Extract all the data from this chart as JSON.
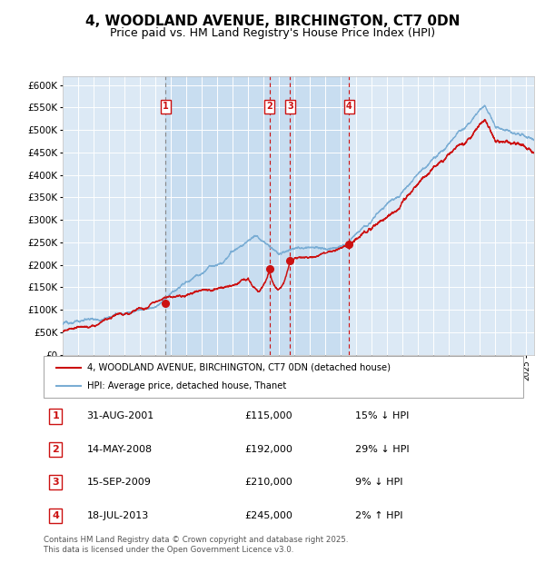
{
  "title": "4, WOODLAND AVENUE, BIRCHINGTON, CT7 0DN",
  "subtitle": "Price paid vs. HM Land Registry's House Price Index (HPI)",
  "title_fontsize": 11,
  "subtitle_fontsize": 9,
  "ylim": [
    0,
    620000
  ],
  "yticks": [
    0,
    50000,
    100000,
    150000,
    200000,
    250000,
    300000,
    350000,
    400000,
    450000,
    500000,
    550000,
    600000
  ],
  "ytick_labels": [
    "£0",
    "£50K",
    "£100K",
    "£150K",
    "£200K",
    "£250K",
    "£300K",
    "£350K",
    "£400K",
    "£450K",
    "£500K",
    "£550K",
    "£600K"
  ],
  "plot_bg_color": "#dce9f5",
  "grid_color": "#ffffff",
  "line_color_hpi": "#7aadd4",
  "line_color_price": "#cc1111",
  "sale_points": [
    {
      "label": "1",
      "year": 2001.67,
      "price": 115000
    },
    {
      "label": "2",
      "year": 2008.37,
      "price": 192000
    },
    {
      "label": "3",
      "year": 2009.71,
      "price": 210000
    },
    {
      "label": "4",
      "year": 2013.54,
      "price": 245000
    }
  ],
  "legend_entries": [
    {
      "label": "4, WOODLAND AVENUE, BIRCHINGTON, CT7 0DN (detached house)",
      "color": "#cc1111"
    },
    {
      "label": "HPI: Average price, detached house, Thanet",
      "color": "#7aadd4"
    }
  ],
  "table_data": [
    {
      "num": "1",
      "date": "31-AUG-2001",
      "price": "£115,000",
      "hpi": "15% ↓ HPI"
    },
    {
      "num": "2",
      "date": "14-MAY-2008",
      "price": "£192,000",
      "hpi": "29% ↓ HPI"
    },
    {
      "num": "3",
      "date": "15-SEP-2009",
      "price": "£210,000",
      "hpi": "9% ↓ HPI"
    },
    {
      "num": "4",
      "date": "18-JUL-2013",
      "price": "£245,000",
      "hpi": "2% ↑ HPI"
    }
  ],
  "footnote": "Contains HM Land Registry data © Crown copyright and database right 2025.\nThis data is licensed under the Open Government Licence v3.0.",
  "xmin": 1995.0,
  "xmax": 2025.5
}
